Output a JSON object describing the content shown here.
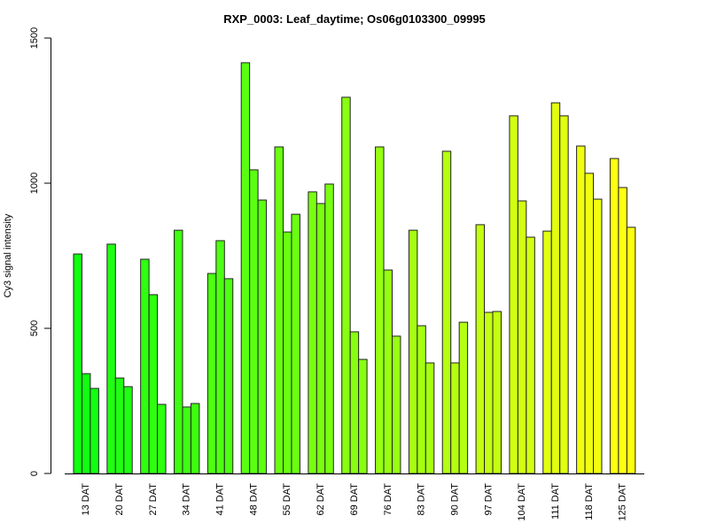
{
  "chart_data": {
    "type": "bar",
    "title": "RXP_0003: Leaf_daytime; Os06g0103300_09995",
    "xlabel": "",
    "ylabel": "Cy3 signal intensity",
    "ylim": [
      0,
      1500
    ],
    "yticks": [
      "0",
      "500",
      "1000",
      "1500"
    ],
    "grid": false,
    "categories": [
      "13 DAT",
      "20 DAT",
      "27 DAT",
      "34 DAT",
      "41 DAT",
      "48 DAT",
      "55 DAT",
      "62 DAT",
      "69 DAT",
      "76 DAT",
      "83 DAT",
      "90 DAT",
      "97 DAT",
      "104 DAT",
      "111 DAT",
      "118 DAT",
      "125 DAT"
    ],
    "replicate_values": [
      [
        756,
        344,
        293
      ],
      [
        790,
        329,
        299
      ],
      [
        738,
        616,
        238
      ],
      [
        838,
        229,
        241
      ],
      [
        689,
        802,
        671
      ],
      [
        1415,
        1046,
        942
      ],
      [
        1125,
        832,
        893
      ],
      [
        970,
        930,
        997
      ],
      [
        1296,
        488,
        393
      ],
      [
        1125,
        701,
        473
      ],
      [
        838,
        509,
        381
      ],
      [
        1110,
        381,
        521
      ],
      [
        857,
        555,
        558
      ],
      [
        1232,
        939,
        814
      ],
      [
        835,
        1277,
        1232
      ],
      [
        1128,
        1034,
        945
      ],
      [
        1085,
        985,
        848
      ]
    ],
    "color_start": "#11ff11",
    "color_end": "#ffff11"
  }
}
